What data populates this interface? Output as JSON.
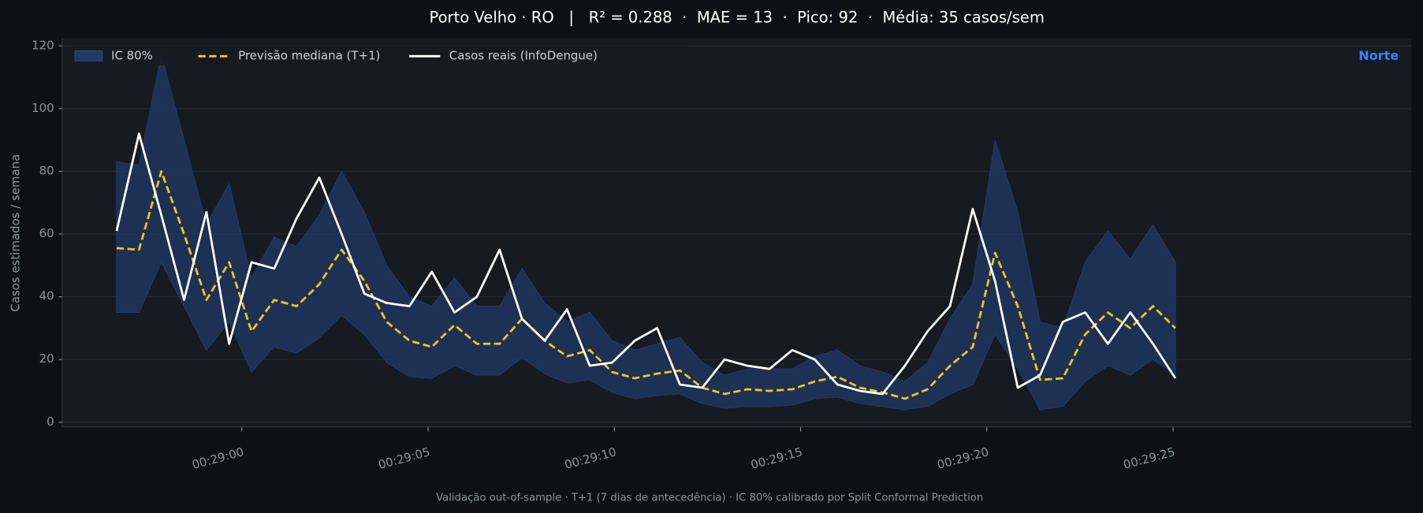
{
  "chart_data": {
    "type": "line",
    "title": "Porto Velho · RO   |   R² = 0.288  ·  MAE = 13  ·  Pico: 92  ·  Média: 35 casos/sem",
    "subtitle": "Validação out-of-sample · T+1 (7 dias de antecedência) · IC 80% calibrado por Split Conformal Prediction",
    "ylabel": "Casos estimados / semana",
    "annotation": "Norte",
    "legend": "upper left",
    "grid": true,
    "x": [
      1736.64,
      1737.24,
      1737.84,
      1738.45,
      1739.05,
      1739.66,
      1740.26,
      1740.87,
      1741.47,
      1742.08,
      1742.68,
      1743.29,
      1743.89,
      1744.5,
      1745.1,
      1745.71,
      1746.31,
      1746.92,
      1747.52,
      1748.13,
      1748.73,
      1749.34,
      1749.94,
      1750.55,
      1751.15,
      1751.76,
      1752.36,
      1752.96,
      1753.57,
      1754.17,
      1754.78,
      1755.38,
      1755.99,
      1756.59,
      1757.2,
      1757.8,
      1758.41,
      1759.01,
      1759.62,
      1760.22,
      1760.83,
      1761.43,
      1762.04,
      1762.64,
      1763.25,
      1763.85,
      1764.46,
      1765.06
    ],
    "xlim": [
      1735.18,
      1771.4
    ],
    "xticks": [
      {
        "value": 1740,
        "label": "00:29:00"
      },
      {
        "value": 1745,
        "label": "00:29:05"
      },
      {
        "value": 1750,
        "label": "00:29:10"
      },
      {
        "value": 1755,
        "label": "00:29:15"
      },
      {
        "value": 1760,
        "label": "00:29:20"
      },
      {
        "value": 1765,
        "label": "00:29:25"
      }
    ],
    "ylim": [
      -1.5,
      122.5
    ],
    "yticks": [
      0,
      20,
      40,
      60,
      80,
      100,
      120
    ],
    "band": {
      "name": "IC 80%",
      "color": "#1f3a66",
      "upper": [
        83,
        82,
        117,
        90,
        63,
        76,
        46,
        59,
        56,
        66,
        80,
        67,
        50,
        40,
        37,
        46,
        37,
        37,
        49,
        38,
        32,
        35,
        26,
        23,
        25,
        27,
        19,
        15,
        17,
        17,
        17,
        21,
        23,
        18,
        16,
        13,
        19,
        33,
        44,
        90,
        67,
        32,
        30,
        51,
        61,
        52,
        63,
        51
      ],
      "lower": [
        35,
        35,
        51,
        37,
        23,
        32,
        16,
        24,
        22,
        27,
        34,
        28,
        19,
        14.5,
        14,
        18,
        15,
        15,
        20.5,
        15.5,
        12.5,
        13.5,
        9.5,
        7.5,
        8.5,
        9,
        6,
        4.5,
        5,
        5,
        5.5,
        7.5,
        8,
        6,
        5,
        4,
        5,
        9,
        12,
        28,
        17,
        4,
        5,
        13,
        18,
        15,
        20,
        15
      ]
    },
    "series": [
      {
        "name": "Previsão mediana (T+1)",
        "color": "#f5c518",
        "dashed": true,
        "values": [
          55.5,
          55,
          80,
          60,
          39,
          51,
          29,
          39,
          37,
          44,
          55,
          45,
          32,
          26,
          24,
          31,
          25,
          25,
          33,
          26,
          21,
          23,
          16,
          14,
          15.5,
          16.5,
          11,
          9,
          10.5,
          10,
          10.5,
          13,
          14.5,
          11,
          9.5,
          7.5,
          10.5,
          18,
          24,
          54,
          37,
          13.5,
          14,
          28,
          35,
          30,
          37,
          30
        ]
      },
      {
        "name": "Casos reais (InfoDengue)",
        "color": "#ffffff",
        "dashed": false,
        "values": [
          61,
          92,
          66,
          39,
          67,
          25,
          51,
          49,
          65,
          78,
          60,
          41,
          38,
          37,
          48,
          35,
          40,
          55,
          33,
          26,
          36,
          18,
          19,
          26,
          30,
          12,
          11,
          20,
          18,
          17,
          23,
          20,
          12,
          10,
          9,
          18,
          29,
          37,
          68,
          45,
          11,
          15,
          32,
          35,
          25,
          35,
          25,
          14
        ]
      }
    ]
  }
}
